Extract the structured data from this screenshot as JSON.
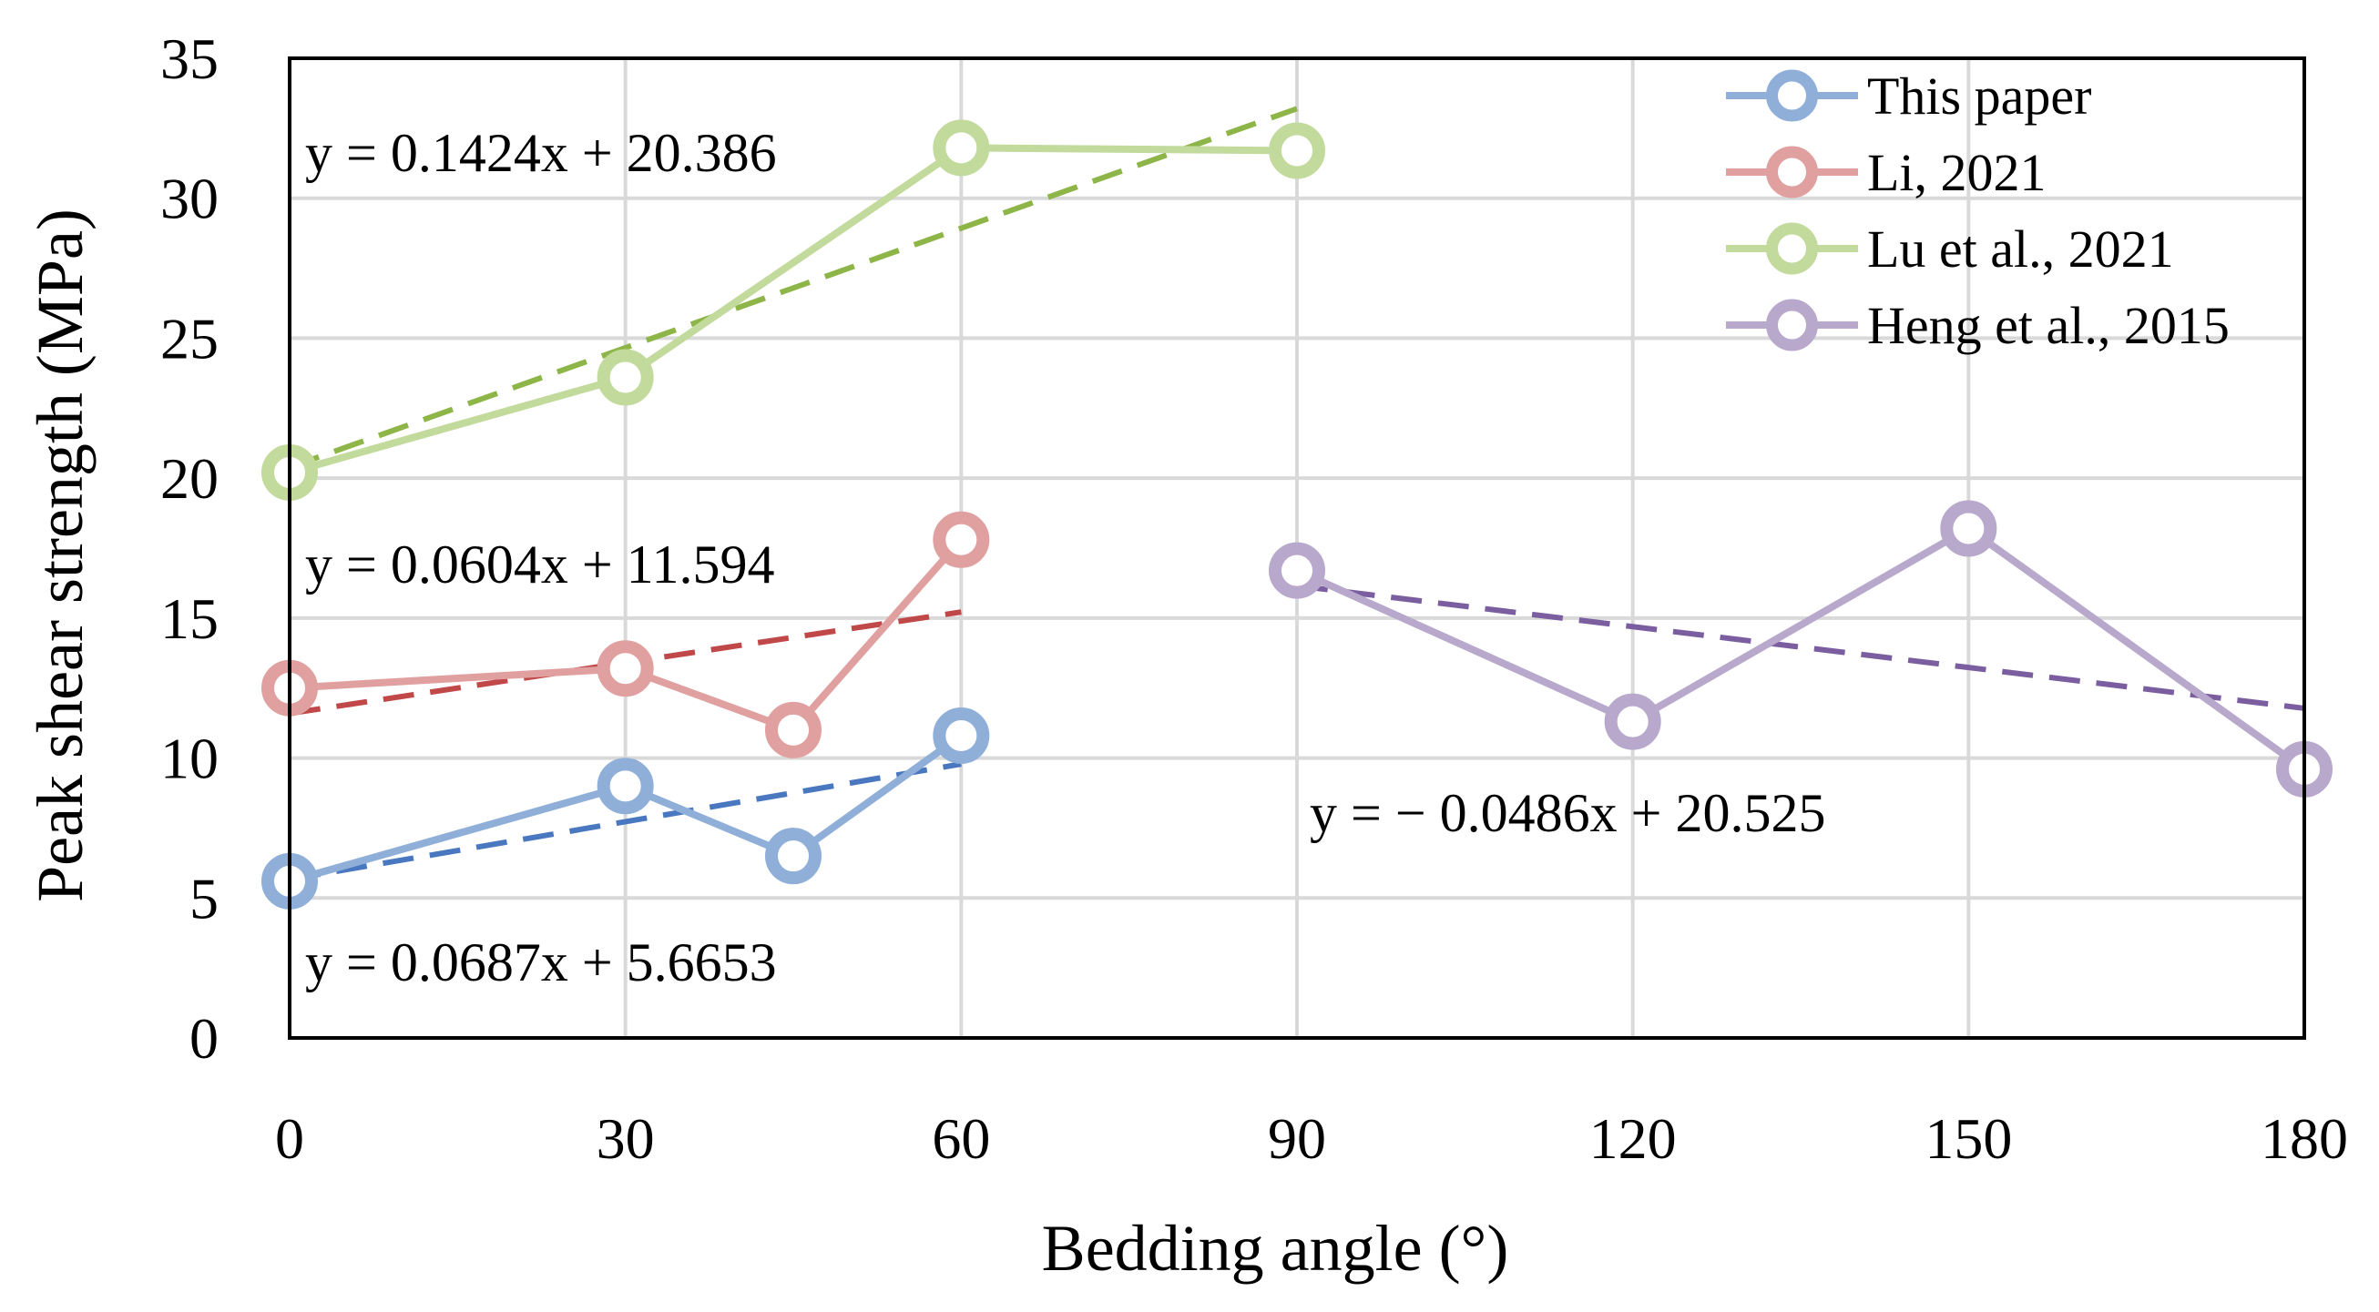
{
  "chart_data": {
    "type": "line",
    "xlabel": "Bedding angle (°)",
    "ylabel": "Peak shear strength (MPa)",
    "xlim": [
      0,
      180
    ],
    "ylim": [
      0,
      35
    ],
    "xticks": [
      "0",
      "30",
      "60",
      "90",
      "120",
      "150",
      "180"
    ],
    "xtick_values": [
      0,
      30,
      60,
      90,
      120,
      150,
      180
    ],
    "yticks": [
      "0",
      "5",
      "10",
      "15",
      "20",
      "25",
      "30",
      "35"
    ],
    "ytick_values": [
      0,
      5,
      10,
      15,
      20,
      25,
      30,
      35
    ],
    "grid": true,
    "legend_position": "top-right",
    "series": [
      {
        "name": "This paper",
        "color": "#8FAFD9",
        "trend_color": "#4A78C0",
        "x": [
          0,
          30,
          45,
          60
        ],
        "y": [
          5.6,
          9.0,
          6.5,
          10.8
        ],
        "trend": {
          "slope": 0.0687,
          "intercept": 5.6653,
          "x_range": [
            0,
            60
          ]
        },
        "equation": "y = 0.0687x + 5.6653"
      },
      {
        "name": "Li, 2021",
        "color": "#E0A0A0",
        "trend_color": "#C04848",
        "x": [
          0,
          30,
          45,
          60
        ],
        "y": [
          12.5,
          13.2,
          11.0,
          17.8
        ],
        "trend": {
          "slope": 0.0604,
          "intercept": 11.594,
          "x_range": [
            0,
            60
          ]
        },
        "equation": "y = 0.0604x + 11.594"
      },
      {
        "name": "Lu et al., 2021",
        "color": "#C2DA9C",
        "trend_color": "#8DB548",
        "x": [
          0,
          30,
          60,
          90
        ],
        "y": [
          20.2,
          23.6,
          31.8,
          31.7
        ],
        "trend": {
          "slope": 0.1424,
          "intercept": 20.386,
          "x_range": [
            0,
            90
          ]
        },
        "equation": "y = 0.1424x + 20.386"
      },
      {
        "name": "Heng et al., 2015",
        "color": "#B8A8CC",
        "trend_color": "#7A5EA0",
        "x": [
          90,
          120,
          150,
          180
        ],
        "y": [
          16.7,
          11.3,
          18.2,
          9.6
        ],
        "trend": {
          "slope": -0.0486,
          "intercept": 20.525,
          "x_range": [
            90,
            180
          ]
        },
        "equation": "y = − 0.0486x + 20.525"
      }
    ]
  }
}
